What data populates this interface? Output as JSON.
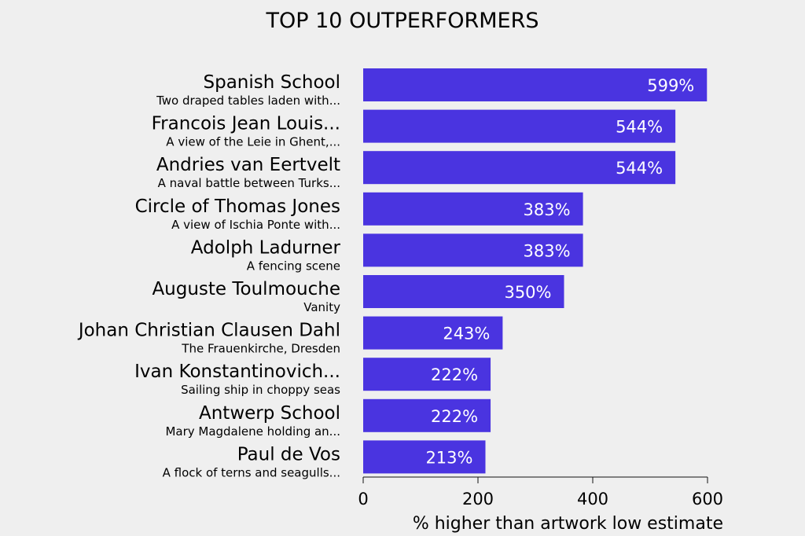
{
  "chart_data": {
    "type": "bar",
    "orientation": "horizontal",
    "title": "TOP 10 OUTPERFORMERS",
    "xlabel": "% higher than artwork low estimate",
    "xlim": [
      0,
      600
    ],
    "xticks": [
      0,
      200,
      400,
      600
    ],
    "bar_color": "#4a34e0",
    "value_suffix": "%",
    "categories": [
      {
        "artist": "Spanish School",
        "artwork": "Two draped tables laden with..."
      },
      {
        "artist": "Francois Jean Louis...",
        "artwork": "A view of the Leie in Ghent,..."
      },
      {
        "artist": "Andries van Eertvelt",
        "artwork": "A naval battle between Turks..."
      },
      {
        "artist": "Circle of Thomas Jones",
        "artwork": "A view of Ischia Ponte with..."
      },
      {
        "artist": "Adolph Ladurner",
        "artwork": "A fencing scene"
      },
      {
        "artist": "Auguste Toulmouche",
        "artwork": "Vanity"
      },
      {
        "artist": "Johan Christian Clausen Dahl",
        "artwork": "The Frauenkirche, Dresden"
      },
      {
        "artist": "Ivan Konstantinovich...",
        "artwork": "Sailing ship in choppy seas"
      },
      {
        "artist": "Antwerp School",
        "artwork": "Mary Magdalene holding an..."
      },
      {
        "artist": "Paul de Vos",
        "artwork": "A flock of terns and seagulls..."
      }
    ],
    "values": [
      599,
      544,
      544,
      383,
      383,
      350,
      243,
      222,
      222,
      213
    ],
    "grid": false,
    "legend": "none"
  }
}
